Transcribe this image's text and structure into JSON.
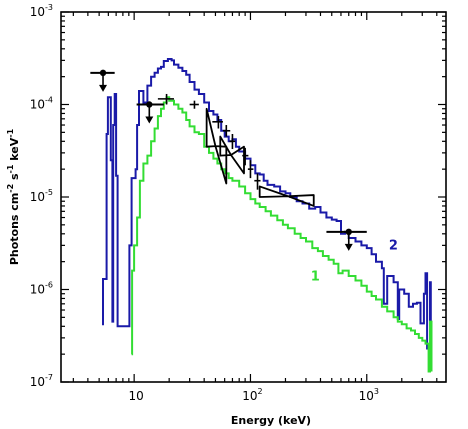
{
  "chart_data": {
    "type": "line",
    "xlabel": "Energy (keV)",
    "ylabel": "Photons cm-2 s-1 keV-1",
    "ylabel_parts": {
      "a": "Photons cm",
      "b": "-2",
      "c": " s",
      "d": "-1",
      "e": " keV",
      "f": "-1"
    },
    "xscale": "log",
    "yscale": "log",
    "xlim": [
      2.35,
      4800
    ],
    "ylim": [
      1e-07,
      0.001
    ],
    "x_ticks": [
      {
        "value": 10,
        "base": "10",
        "exp": ""
      },
      {
        "value": 100,
        "base": "10",
        "exp": "2"
      },
      {
        "value": 1000,
        "base": "10",
        "exp": "3"
      }
    ],
    "y_ticks": [
      {
        "value": 1e-07,
        "base": "10",
        "exp": "-7"
      },
      {
        "value": 1e-06,
        "base": "10",
        "exp": "-6"
      },
      {
        "value": 1e-05,
        "base": "10",
        "exp": "-5"
      },
      {
        "value": 0.0001,
        "base": "10",
        "exp": "-4"
      },
      {
        "value": 0.001,
        "base": "10",
        "exp": "-3"
      }
    ],
    "grid": false,
    "series": [
      {
        "name": "2",
        "color": "#1a1aa8",
        "points": [
          [
            5.4,
            4.1e-07
          ],
          [
            5.4,
            1.3e-06
          ],
          [
            5.8,
            4.8e-05
          ],
          [
            5.95,
            0.00012
          ],
          [
            6.3,
            2.5e-05
          ],
          [
            6.5,
            4.5e-07
          ],
          [
            6.6,
            6e-05
          ],
          [
            6.8,
            0.00013
          ],
          [
            7.0,
            1.7e-05
          ],
          [
            7.2,
            4e-07
          ],
          [
            9.0,
            4e-07
          ],
          [
            9.1,
            3e-06
          ],
          [
            9.5,
            1.6e-05
          ],
          [
            10.3,
            2e-05
          ],
          [
            10.6,
            6e-05
          ],
          [
            11.0,
            0.00014
          ],
          [
            12.0,
            0.000105
          ],
          [
            13.0,
            0.00016
          ],
          [
            14.0,
            0.0002
          ],
          [
            15.0,
            0.00022
          ],
          [
            16.0,
            0.000245
          ],
          [
            17.0,
            0.000255
          ],
          [
            18.0,
            0.000295
          ],
          [
            19.5,
            0.00031
          ],
          [
            21.0,
            0.0003
          ],
          [
            22.0,
            0.00027
          ],
          [
            24.0,
            0.00025
          ],
          [
            26.0,
            0.00023
          ],
          [
            28.0,
            0.00021
          ],
          [
            30.0,
            0.000175
          ],
          [
            33.0,
            0.000145
          ],
          [
            36.0,
            0.00013
          ],
          [
            40.0,
            0.000105
          ],
          [
            44.0,
            8.5e-05
          ],
          [
            48.0,
            7.8e-05
          ],
          [
            52.0,
            6.8e-05
          ],
          [
            56.0,
            5.2e-05
          ],
          [
            60.0,
            4.5e-05
          ],
          [
            65.0,
            4e-05
          ],
          [
            70.0,
            4.2e-05
          ],
          [
            75.0,
            3.5e-05
          ],
          [
            80.0,
            3.1e-05
          ],
          [
            90.0,
            2.6e-05
          ],
          [
            100.0,
            2.2e-05
          ],
          [
            110.0,
            1.8e-05
          ],
          [
            120.0,
            1.75e-05
          ],
          [
            130.0,
            1.5e-05
          ],
          [
            140.0,
            1.35e-05
          ],
          [
            160.0,
            1.3e-05
          ],
          [
            180.0,
            1.15e-05
          ],
          [
            200.0,
            1.1e-05
          ],
          [
            220.0,
            1e-05
          ],
          [
            250.0,
            9e-06
          ],
          [
            280.0,
            8.5e-06
          ],
          [
            320.0,
            7.5e-06
          ],
          [
            360.0,
            7.8e-06
          ],
          [
            400.0,
            6.8e-06
          ],
          [
            450.0,
            6e-06
          ],
          [
            500.0,
            5.7e-06
          ],
          [
            550.0,
            5.5e-06
          ],
          [
            600.0,
            4e-06
          ],
          [
            650.0,
            4.2e-06
          ],
          [
            700.0,
            3.6e-06
          ],
          [
            800.0,
            3.3e-06
          ],
          [
            900.0,
            3e-06
          ],
          [
            1000.0,
            2.8e-06
          ],
          [
            1100.0,
            2.4e-06
          ],
          [
            1200.0,
            2e-06
          ],
          [
            1350.0,
            1.7e-06
          ],
          [
            1400.0,
            7e-07
          ],
          [
            1500.0,
            1.4e-06
          ],
          [
            1700.0,
            1.2e-06
          ],
          [
            1850.0,
            4.8e-07
          ],
          [
            1900.0,
            1e-06
          ],
          [
            2100.0,
            9e-07
          ],
          [
            2300.0,
            6.5e-07
          ],
          [
            2500.0,
            7e-07
          ],
          [
            2700.0,
            7.2e-07
          ],
          [
            2900.0,
            4.3e-07
          ],
          [
            3100.0,
            9e-07
          ],
          [
            3200.0,
            1.5e-06
          ],
          [
            3300.0,
            2.3e-07
          ],
          [
            3450.0,
            2.3e-07
          ],
          [
            3500.0,
            1.2e-06
          ],
          [
            3550.0,
            2e-07
          ]
        ]
      },
      {
        "name": "1",
        "color": "#33dd33",
        "points": [
          [
            9.5,
            2e-07
          ],
          [
            9.6,
            1.6e-06
          ],
          [
            10.0,
            3e-06
          ],
          [
            10.6,
            6e-06
          ],
          [
            11.2,
            1.5e-05
          ],
          [
            12.0,
            2.3e-05
          ],
          [
            13.0,
            2.8e-05
          ],
          [
            14.0,
            4e-05
          ],
          [
            15.0,
            5.5e-05
          ],
          [
            16.0,
            7.5e-05
          ],
          [
            17.0,
            9e-05
          ],
          [
            18.0,
            0.000105
          ],
          [
            19.0,
            0.00012
          ],
          [
            20.0,
            0.00011
          ],
          [
            22.0,
            0.0001
          ],
          [
            24.0,
            9e-05
          ],
          [
            26.0,
            8.2e-05
          ],
          [
            28.0,
            6.8e-05
          ],
          [
            30.0,
            5.8e-05
          ],
          [
            33.0,
            5e-05
          ],
          [
            36.0,
            4.8e-05
          ],
          [
            40.0,
            3.5e-05
          ],
          [
            44.0,
            3e-05
          ],
          [
            48.0,
            2.6e-05
          ],
          [
            52.0,
            2.3e-05
          ],
          [
            56.0,
            2e-05
          ],
          [
            60.0,
            1.8e-05
          ],
          [
            65.0,
            1.6e-05
          ],
          [
            70.0,
            1.5e-05
          ],
          [
            80.0,
            1.3e-05
          ],
          [
            90.0,
            1.1e-05
          ],
          [
            100.0,
            9.5e-06
          ],
          [
            110.0,
            8.5e-06
          ],
          [
            120.0,
            7.8e-06
          ],
          [
            135.0,
            7e-06
          ],
          [
            150.0,
            6.3e-06
          ],
          [
            170.0,
            5.6e-06
          ],
          [
            190.0,
            5e-06
          ],
          [
            210.0,
            4.6e-06
          ],
          [
            240.0,
            4e-06
          ],
          [
            270.0,
            3.6e-06
          ],
          [
            300.0,
            3.3e-06
          ],
          [
            340.0,
            2.8e-06
          ],
          [
            380.0,
            2.6e-06
          ],
          [
            420.0,
            2.3e-06
          ],
          [
            470.0,
            2.1e-06
          ],
          [
            520.0,
            1.9e-06
          ],
          [
            570.0,
            1.5e-06
          ],
          [
            620.0,
            1.6e-06
          ],
          [
            700.0,
            1.4e-06
          ],
          [
            800.0,
            1.25e-06
          ],
          [
            900.0,
            1.1e-06
          ],
          [
            1000.0,
            9.5e-07
          ],
          [
            1100.0,
            8.5e-07
          ],
          [
            1200.0,
            7.8e-07
          ],
          [
            1350.0,
            6.5e-07
          ],
          [
            1500.0,
            5.8e-07
          ],
          [
            1700.0,
            5e-07
          ],
          [
            1850.0,
            4.5e-07
          ],
          [
            2000.0,
            4.2e-07
          ],
          [
            2200.0,
            3.8e-07
          ],
          [
            2400.0,
            3.6e-07
          ],
          [
            2600.0,
            3.3e-07
          ],
          [
            2800.0,
            3e-07
          ],
          [
            3000.0,
            2.8e-07
          ],
          [
            3200.0,
            2.6e-07
          ],
          [
            3400.0,
            1.3e-07
          ],
          [
            3500.0,
            4.5e-07
          ],
          [
            3600.0,
            1.3e-07
          ]
        ]
      }
    ],
    "upper_limits": [
      {
        "x": 5.4,
        "y": 0.00022,
        "x_low": 4.2,
        "x_high": 6.8
      },
      {
        "x": 13.5,
        "y": 0.0001,
        "x_low": 10.5,
        "x_high": 18.0
      },
      {
        "x": 700,
        "y": 4.2e-06,
        "x_low": 450,
        "x_high": 1000
      }
    ],
    "crosses": [
      {
        "x": 19,
        "y": 0.000115,
        "x_low": 16,
        "x_high": 22,
        "y_low": 0.0001,
        "y_high": 0.00013
      },
      {
        "x": 33,
        "y": 0.0001,
        "x_low": 30,
        "x_high": 36,
        "y_low": 9e-05,
        "y_high": 0.00011
      },
      {
        "x": 53,
        "y": 6.5e-05,
        "x_low": 47,
        "x_high": 58,
        "y_low": 5.5e-05,
        "y_high": 7.5e-05
      },
      {
        "x": 62,
        "y": 5.2e-05,
        "x_low": 58,
        "x_high": 67,
        "y_low": 4.5e-05,
        "y_high": 6e-05
      },
      {
        "x": 70,
        "y": 4e-05,
        "x_low": 66,
        "x_high": 74,
        "y_low": 3.3e-05,
        "y_high": 4.8e-05
      },
      {
        "x": 90,
        "y": 2.8e-05,
        "x_low": 85,
        "x_high": 96,
        "y_low": 2.2e-05,
        "y_high": 3.4e-05
      },
      {
        "x": 100,
        "y": 2e-05,
        "x_low": 95,
        "x_high": 106,
        "y_low": 1.6e-05,
        "y_high": 2.5e-05
      },
      {
        "x": 115,
        "y": 1.5e-05,
        "x_low": 108,
        "x_high": 122,
        "y_low": 1.2e-05,
        "y_high": 1.8e-05
      }
    ],
    "bowties": [
      {
        "x1": 42,
        "x2": 62,
        "pivot": 50,
        "y1_hi": 9e-05,
        "y1_lo": 3.5e-05,
        "y2_hi": 3.5e-05,
        "y2_lo": 1.4e-05
      },
      {
        "x1": 55,
        "x2": 88,
        "pivot": 68,
        "y1_hi": 4.5e-05,
        "y1_lo": 2.8e-05,
        "y2_hi": 3.5e-05,
        "y2_lo": 1.8e-05
      },
      {
        "x1": 120,
        "x2": 350,
        "pivot": 210,
        "y1_hi": 1.3e-05,
        "y1_lo": 1e-05,
        "y2_hi": 1.05e-05,
        "y2_lo": 8e-06
      }
    ],
    "curve_labels": [
      {
        "text": "2",
        "x": 1550,
        "y": 2.7e-06,
        "color": "#1a1aa8"
      },
      {
        "text": "1",
        "x": 330,
        "y": 1.25e-06,
        "color": "#33dd33"
      }
    ]
  }
}
